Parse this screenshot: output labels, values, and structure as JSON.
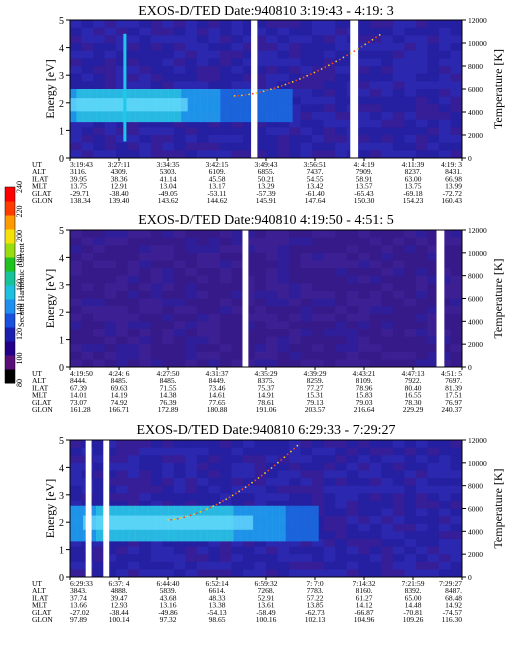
{
  "figure": {
    "colorbar": {
      "label": "Second Harmonic Current",
      "ticks": [
        "80",
        "100",
        "120",
        "140",
        "160",
        "180",
        "200",
        "220",
        "240"
      ],
      "colors": [
        "#000000",
        "#5a0f78",
        "#24008a",
        "#1a1fb0",
        "#1a50e0",
        "#1e8ff0",
        "#1ec0e0",
        "#17c39a",
        "#1fc21f",
        "#9bdc10",
        "#f5e10a",
        "#ff9a00",
        "#ff3c00",
        "#ff0000"
      ]
    }
  },
  "chart_data": [
    {
      "type": "heatmap",
      "title": "EXOS-D/TED   Date:940810   3:19:43 - 4:19: 3",
      "ylabel": "Energy [eV]",
      "y2label": "Temperature [K]",
      "ylim": [
        0,
        5
      ],
      "y2lim": [
        0,
        12000
      ],
      "yticks": [
        "0",
        "1",
        "2",
        "3",
        "4",
        "5"
      ],
      "y2ticks": [
        "0",
        "2000",
        "4000",
        "6000",
        "8000",
        "10000",
        "12000"
      ],
      "table_rows": [
        "UT",
        "ALT",
        "ILAT",
        "MLT",
        "GLAT",
        "GLON"
      ],
      "table": [
        [
          "3:19:43",
          "3:27:11",
          "3:34:35",
          "3:42:15",
          "3:49:43",
          "3:56:51",
          "4: 4:19",
          "4:11:39",
          "4:19: 3"
        ],
        [
          "3116.",
          "4309.",
          "5303.",
          "6109.",
          "6855.",
          "7437.",
          "7909.",
          "8237.",
          "8431."
        ],
        [
          "39.95",
          "38.36",
          "41.14",
          "45.58",
          "50.21",
          "54.55",
          "58.91",
          "63.00",
          "66.98"
        ],
        [
          "13.75",
          "12.91",
          "13.04",
          "13.17",
          "13.29",
          "13.42",
          "13.57",
          "13.75",
          "13.99"
        ],
        [
          "-29.71",
          "-38.40",
          "-49.05",
          "-53.11",
          "-57.39",
          "-61.40",
          "-65.43",
          "-69.18",
          "-72.72"
        ],
        [
          "138.34",
          "139.40",
          "143.62",
          "144.62",
          "145.91",
          "147.64",
          "150.30",
          "154.23",
          "160.43"
        ]
      ],
      "band": {
        "center_ev": 1.9,
        "halfwidth_ev": 0.6,
        "intensity_profile": [
          0.8,
          0.9,
          0.85,
          0.6,
          0.5,
          0.4,
          0.1,
          0.0,
          0.0
        ],
        "end_fraction": 0.55
      },
      "spike_fraction": 0.14,
      "gaps": [
        [
          0.462,
          0.478
        ],
        [
          0.715,
          0.735
        ]
      ],
      "curve": {
        "start_fraction": 0.42,
        "end_fraction": 0.79,
        "start_temp_k": 5400,
        "end_temp_k": 10700
      }
    },
    {
      "type": "heatmap",
      "title": "EXOS-D/TED   Date:940810   4:19:50 - 4:51: 5",
      "ylabel": "Energy [eV]",
      "y2label": "Temperature [K]",
      "ylim": [
        0,
        5
      ],
      "y2lim": [
        0,
        12000
      ],
      "yticks": [
        "0",
        "1",
        "2",
        "3",
        "4",
        "5"
      ],
      "y2ticks": [
        "0",
        "2000",
        "4000",
        "6000",
        "8000",
        "10000",
        "12000"
      ],
      "table_rows": [
        "UT",
        "ALT",
        "ILAT",
        "MLT",
        "GLAT",
        "GLON"
      ],
      "table": [
        [
          "4:19:50",
          "4:24: 6",
          "4:27:50",
          "4:31:37",
          "4:35:29",
          "4:39:29",
          "4:43:21",
          "4:47:13",
          "4:51: 5"
        ],
        [
          "8444.",
          "8485.",
          "8485.",
          "8449.",
          "8375.",
          "8259.",
          "8109.",
          "7922.",
          "7697."
        ],
        [
          "67.39",
          "69.63",
          "71.55",
          "73.46",
          "75.37",
          "77.27",
          "78.96",
          "80.40",
          "81.39"
        ],
        [
          "14.01",
          "14.19",
          "14.38",
          "14.61",
          "14.91",
          "15.31",
          "15.83",
          "16.55",
          "17.51"
        ],
        [
          "73.07",
          "74.92",
          "76.39",
          "77.65",
          "78.61",
          "79.13",
          "79.03",
          "78.30",
          "76.97"
        ],
        [
          "161.28",
          "166.71",
          "172.89",
          "180.88",
          "191.06",
          "203.57",
          "216.64",
          "229.29",
          "240.37"
        ]
      ],
      "gaps": [
        [
          0.44,
          0.455
        ],
        [
          0.935,
          0.955
        ]
      ]
    },
    {
      "type": "heatmap",
      "title": "EXOS-D/TED   Date:940810   6:29:33 - 7:29:27",
      "ylabel": "Energy [eV]",
      "y2label": "Temperature [K]",
      "ylim": [
        0,
        5
      ],
      "y2lim": [
        0,
        12000
      ],
      "yticks": [
        "0",
        "1",
        "2",
        "3",
        "4",
        "5"
      ],
      "y2ticks": [
        "0",
        "2000",
        "4000",
        "6000",
        "8000",
        "10000",
        "12000"
      ],
      "table_rows": [
        "UT",
        "ALT",
        "ILAT",
        "MLT",
        "GLAT",
        "GLON"
      ],
      "table": [
        [
          "6:29:33",
          "6:37: 4",
          "6:44:40",
          "6:52:14",
          "6:59:32",
          "7: 7:0",
          "7:14:32",
          "7:21:59",
          "7:29:27"
        ],
        [
          "3843.",
          "4888.",
          "5839.",
          "6614.",
          "7268.",
          "7783.",
          "8160.",
          "8392.",
          "8487."
        ],
        [
          "37.74",
          "39.47",
          "43.68",
          "48.33",
          "52.91",
          "57.22",
          "61.27",
          "65.00",
          "68.48"
        ],
        [
          "13.66",
          "12.93",
          "13.16",
          "13.38",
          "13.61",
          "13.85",
          "14.12",
          "14.48",
          "14.92"
        ],
        [
          "-27.02",
          "-38.44",
          "-49.86",
          "-54.13",
          "-58.49",
          "-62.73",
          "-66.87",
          "-70.81",
          "-74.57"
        ],
        [
          "97.89",
          "100.14",
          "97.32",
          "98.65",
          "100.16",
          "102.13",
          "104.96",
          "109.26",
          "116.30"
        ]
      ],
      "band": {
        "center_ev": 1.95,
        "halfwidth_ev": 0.65,
        "intensity_profile": [
          0.7,
          0.9,
          0.95,
          0.85,
          0.7,
          0.45,
          0.1,
          0.0,
          0.0
        ],
        "end_fraction": 0.62
      },
      "gaps": [
        [
          0.04,
          0.055
        ],
        [
          0.085,
          0.1
        ]
      ],
      "curve": {
        "start_fraction": 0.25,
        "end_fraction": 0.58,
        "start_temp_k": 5000,
        "end_temp_k": 11500
      }
    }
  ]
}
